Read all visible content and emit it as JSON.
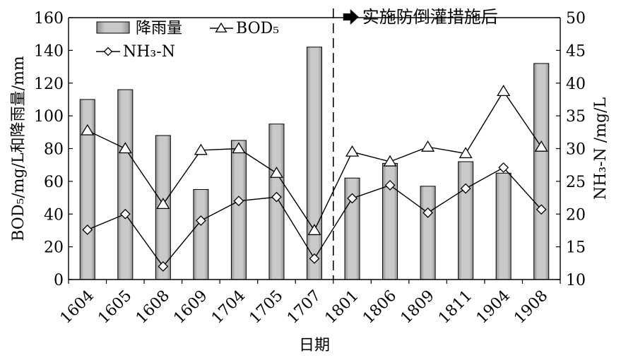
{
  "chart_data": {
    "type": "bar",
    "categories": [
      "1604",
      "1605",
      "1608",
      "1609",
      "1704",
      "1705",
      "1707",
      "1801",
      "1806",
      "1809",
      "1811",
      "1904",
      "1908"
    ],
    "series": [
      {
        "name": "降雨量",
        "type": "bar",
        "axis": "left",
        "values": [
          110,
          116,
          88,
          55,
          85,
          95,
          142,
          62,
          71,
          57,
          72,
          65,
          132
        ]
      },
      {
        "name": "BOD₅",
        "type": "line",
        "marker": "triangle",
        "axis": "left",
        "values": [
          91,
          80,
          46,
          79,
          80,
          65,
          30,
          78,
          72,
          81,
          77,
          115,
          81
        ]
      },
      {
        "name": "NH₃-N",
        "type": "line",
        "marker": "diamond",
        "axis": "right",
        "values": [
          17.6,
          20,
          12,
          19,
          22,
          22.6,
          13.2,
          22.4,
          24.4,
          20.2,
          23.9,
          27.1,
          20.7
        ]
      }
    ],
    "xlabel": "日期",
    "ylabel": "BOD₅/mg/L和降雨量/mm",
    "y2label": "NH₃-N /mg/L",
    "ylim": [
      0,
      160
    ],
    "y2lim": [
      10,
      50
    ],
    "yticks": [
      "0",
      "20",
      "40",
      "60",
      "80",
      "100",
      "120",
      "140",
      "160"
    ],
    "y2ticks": [
      "10",
      "15",
      "20",
      "25",
      "30",
      "35",
      "40",
      "45",
      "50"
    ],
    "divider_after_category": "1707",
    "annotation": "实施防倒灌措施后",
    "grid": false,
    "legend_position": "top-left",
    "colors": {
      "bar_fill": "#b8b8b8",
      "line": "#000000",
      "marker_fill": "#ffffff"
    }
  }
}
